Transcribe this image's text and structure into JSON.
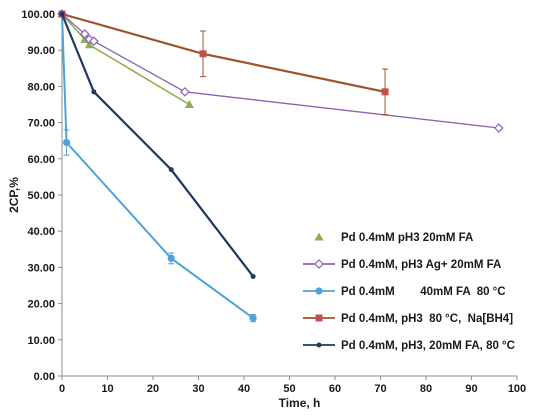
{
  "chart_data": {
    "type": "line",
    "title": "",
    "xlabel": "Time, h",
    "ylabel": "2CP,%",
    "xlim": [
      0,
      100
    ],
    "ylim": [
      0,
      100
    ],
    "x_ticks": [
      "0",
      "10",
      "20",
      "30",
      "40",
      "50",
      "60",
      "70",
      "80",
      "90",
      "100"
    ],
    "y_ticks": [
      "0.00",
      "10.00",
      "20.00",
      "30.00",
      "40.00",
      "50.00",
      "60.00",
      "70.00",
      "80.00",
      "90.00",
      "100.00"
    ],
    "grid": false,
    "legend_position": "right",
    "series": [
      {
        "name": "Pd 0.4mM pH3 20mM FA",
        "color": "#8db04a",
        "marker": "triangle",
        "x": [
          0,
          5,
          6,
          28
        ],
        "y": [
          100,
          93,
          91.5,
          75
        ]
      },
      {
        "name": "Pd 0.4mM, pH3 Ag+ 20mM FA",
        "color": "#8e62b4",
        "marker": "diamond-open",
        "x": [
          0,
          5,
          6,
          7,
          27,
          96
        ],
        "y": [
          100,
          94.5,
          93,
          92.5,
          78.5,
          68.5
        ]
      },
      {
        "name": "Pd 0.4mM        40mM FA  80 °C",
        "color": "#4fa3d8",
        "marker": "circle",
        "x": [
          0,
          1,
          24,
          42
        ],
        "y": [
          100,
          64.5,
          32.5,
          16
        ],
        "error": [
          0,
          3.5,
          1.5,
          1
        ]
      },
      {
        "name": "Pd 0.4mM, pH3  80 °C,  Na[BH4]",
        "color": "#c0504d",
        "line_color": "#a0522d",
        "marker": "square",
        "x": [
          0,
          31,
          71
        ],
        "y": [
          100,
          89,
          78.5
        ],
        "error": [
          0,
          6.3,
          6.3
        ]
      },
      {
        "name": "Pd 0.4mM, pH3, 20mM FA, 80 °C",
        "color": "#1f3864",
        "marker": "dot",
        "x": [
          0,
          7,
          24,
          42
        ],
        "y": [
          100,
          78.5,
          57,
          27.5
        ]
      }
    ]
  }
}
